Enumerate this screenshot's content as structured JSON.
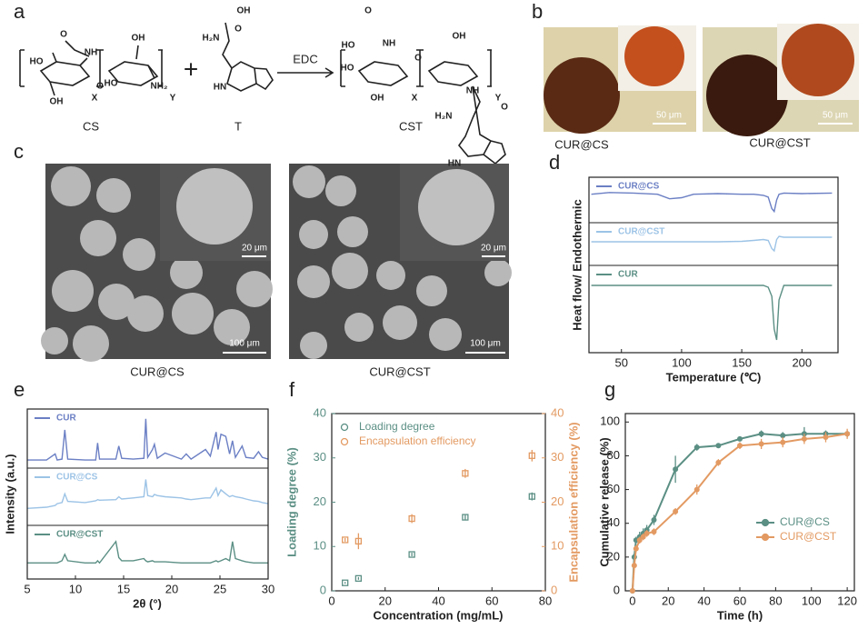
{
  "panel_letters": [
    "a",
    "b",
    "c",
    "d",
    "e",
    "f",
    "g"
  ],
  "scheme": {
    "cs": "CS",
    "t": "T",
    "cst": "CST",
    "reagent": "EDC",
    "plus": "+",
    "atoms": [
      "O",
      "NH",
      "HO",
      "OH",
      "O",
      "OH",
      "HO",
      "NH₂",
      "X",
      "Y",
      "OH",
      "O",
      "H₂N",
      "HN",
      "O",
      "NH",
      "HO",
      "O",
      "OH",
      "HO",
      "OH",
      "X",
      "Y",
      "NH",
      "O",
      "H₂N",
      "HN"
    ]
  },
  "micrographs": {
    "captions": [
      "CUR@CS",
      "CUR@CST"
    ],
    "scale": "50 μm"
  },
  "sem": {
    "captions": [
      "CUR@CS",
      "CUR@CST"
    ],
    "inset_scale": "20 μm",
    "scale": "100 μm"
  },
  "chart_data": [
    {
      "type": "stacked-line",
      "xlabel": "Temperature (℃)",
      "ylabel": "Heat flow/ Endothermic",
      "x": [
        25,
        40,
        60,
        80,
        90,
        100,
        110,
        130,
        150,
        160,
        168,
        172,
        175,
        177,
        179,
        181,
        185,
        200,
        225
      ],
      "xlim": [
        23,
        230
      ],
      "xticks": [
        50,
        100,
        150,
        200
      ],
      "series": [
        {
          "name": "CUR@CS",
          "color": "#6b7fc4",
          "ylim": [
            -4,
            2
          ],
          "values": [
            0,
            0.3,
            0.2,
            0,
            -0.8,
            -0.6,
            0,
            0.1,
            0,
            0,
            -0.2,
            -0.5,
            -2.5,
            -3,
            -1,
            0,
            0.2,
            0.1,
            0.2
          ]
        },
        {
          "name": "CUR@CST",
          "color": "#9cc3e6",
          "ylim": [
            -4,
            3
          ],
          "values": [
            0,
            0,
            0,
            0,
            0,
            0,
            0,
            0,
            0.1,
            0.3,
            0.5,
            0.3,
            -1.5,
            -2,
            0.5,
            1.2,
            1,
            1,
            1
          ]
        },
        {
          "name": "CUR",
          "color": "#5b8f84",
          "ylim": [
            -17,
            4
          ],
          "values": [
            0,
            0,
            0,
            0,
            0,
            0,
            0,
            0,
            0,
            0,
            0,
            -0.5,
            -3,
            -12,
            -15,
            -4,
            0,
            0,
            0
          ]
        }
      ]
    },
    {
      "type": "stacked-line",
      "xlabel": "2θ (°)",
      "ylabel": "Intensity (a.u.)",
      "x": [
        5,
        7,
        7.9,
        8.1,
        8.6,
        8.9,
        9.2,
        11,
        12.1,
        12.3,
        12.5,
        14.2,
        14.5,
        14.8,
        16,
        17.1,
        17.3,
        17.5,
        18,
        18.2,
        18.5,
        19.3,
        21,
        21.5,
        22,
        23.5,
        24,
        24.6,
        24.8,
        25.1,
        25.6,
        26,
        26.3,
        26.6,
        27.3,
        27.7,
        28.5,
        29,
        29.4,
        30
      ],
      "xlim": [
        5,
        30
      ],
      "xticks": [
        5,
        10,
        15,
        20,
        25,
        30
      ],
      "series": [
        {
          "name": "CUR",
          "color": "#6b7fc4",
          "ylim": [
            0,
            110
          ],
          "values": [
            6,
            6,
            20,
            6,
            8,
            75,
            8,
            6,
            6,
            45,
            8,
            8,
            38,
            10,
            8,
            10,
            100,
            12,
            30,
            42,
            10,
            22,
            8,
            20,
            8,
            30,
            15,
            70,
            30,
            65,
            60,
            20,
            50,
            12,
            38,
            12,
            10,
            25,
            12,
            8
          ]
        },
        {
          "name": "CUR@CS",
          "color": "#9cc3e6",
          "ylim": [
            0,
            80
          ],
          "values": [
            20,
            22,
            25,
            28,
            30,
            45,
            32,
            30,
            33,
            35,
            34,
            35,
            40,
            36,
            38,
            40,
            70,
            42,
            40,
            44,
            42,
            40,
            38,
            36,
            35,
            38,
            38,
            55,
            42,
            52,
            45,
            40,
            42,
            40,
            38,
            36,
            33,
            32,
            30,
            28
          ]
        },
        {
          "name": "CUR@CST",
          "color": "#5b8f84",
          "ylim": [
            0,
            40
          ],
          "values": [
            10,
            10,
            10,
            10,
            12,
            18,
            12,
            10,
            10,
            12,
            10,
            30,
            15,
            12,
            12,
            14,
            12,
            11,
            12,
            11,
            11,
            11,
            10,
            10,
            10,
            10,
            10,
            12,
            11,
            12,
            14,
            12,
            30,
            14,
            12,
            11,
            10,
            10,
            10,
            10
          ]
        }
      ]
    },
    {
      "type": "scatter",
      "xlabel": "Concentration (mg/mL)",
      "ylabel": "Loading degree (%)",
      "y2label": "Encapsulation efficiency (%)",
      "x": [
        5,
        10,
        30,
        50,
        75
      ],
      "xlim": [
        0,
        80
      ],
      "xticks": [
        0,
        20,
        40,
        60,
        80
      ],
      "ylim": [
        0,
        40
      ],
      "yticks": [
        0,
        10,
        20,
        30,
        40
      ],
      "y2lim": [
        0,
        40
      ],
      "y2ticks": [
        0,
        10,
        20,
        30,
        40
      ],
      "legend": "upper-left",
      "series": [
        {
          "name": "Loading degree",
          "color": "#5b8f84",
          "values": [
            1.8,
            2.8,
            8.2,
            16.6,
            21.3
          ],
          "errors": [
            0.2,
            0.3,
            0.4,
            0.5,
            0.9
          ]
        },
        {
          "name": "Encapsulation efficiency",
          "color": "#e39a62",
          "axis": "y2",
          "values": [
            11.5,
            11.2,
            16.3,
            26.5,
            30.5
          ],
          "errors": [
            0.4,
            1.8,
            1,
            1,
            1.3
          ]
        }
      ]
    },
    {
      "type": "line",
      "xlabel": "Time (h)",
      "ylabel": "Cumulative release (%)",
      "x": [
        0,
        1,
        2,
        4,
        6,
        8,
        12,
        24,
        36,
        48,
        60,
        72,
        84,
        96,
        108,
        120
      ],
      "xlim": [
        -4,
        124
      ],
      "xticks": [
        0,
        20,
        40,
        60,
        80,
        100,
        120
      ],
      "ylim": [
        0,
        105
      ],
      "yticks": [
        0,
        20,
        40,
        60,
        80,
        100
      ],
      "legend": "lower-right",
      "series": [
        {
          "name": "CUR@CS",
          "color": "#5b8f84",
          "values": [
            0,
            20,
            30,
            32,
            34,
            36,
            42,
            72,
            85,
            86,
            90,
            93,
            92,
            93,
            93,
            93
          ],
          "errors": [
            0,
            2,
            2,
            3,
            3,
            3,
            3,
            8,
            2,
            1,
            1,
            2,
            2,
            4,
            2,
            2
          ]
        },
        {
          "name": "CUR@CST",
          "color": "#e39a62",
          "values": [
            0,
            15,
            25,
            30,
            32,
            34,
            35,
            47,
            60,
            76,
            86,
            87,
            88,
            90,
            91,
            93
          ],
          "errors": [
            0,
            2,
            2,
            2,
            2,
            2,
            2,
            2,
            3,
            2,
            2,
            3,
            3,
            3,
            3,
            3
          ]
        }
      ]
    }
  ]
}
